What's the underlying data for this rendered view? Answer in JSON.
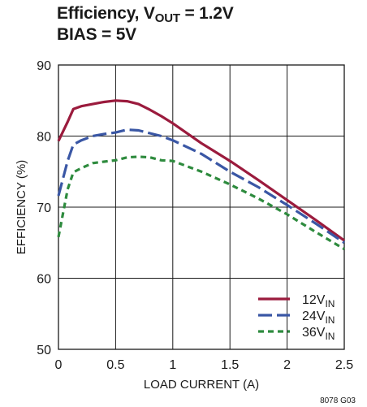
{
  "title": {
    "line1_prefix": "Efficiency, V",
    "line1_sub": "OUT",
    "line1_suffix": " = 1.2V",
    "line2": "BIAS = 5V"
  },
  "figure_code": "8078 G03",
  "chart_data": {
    "type": "line",
    "xlabel": "LOAD CURRENT (A)",
    "ylabel": "EFFICIENCY (%)",
    "xlim": [
      0,
      2.5
    ],
    "ylim": [
      50,
      90
    ],
    "x_ticks": [
      0,
      0.5,
      1,
      1.5,
      2,
      2.5
    ],
    "x_tick_labels": [
      "0",
      "0.5",
      "1",
      "1.5",
      "2",
      "2.5"
    ],
    "y_ticks": [
      50,
      60,
      70,
      80,
      90
    ],
    "y_tick_labels": [
      "50",
      "60",
      "70",
      "80",
      "90"
    ],
    "grid": true,
    "legend_position": "bottom-right",
    "series": [
      {
        "name": "12V",
        "name_sub": "IN",
        "color": "#9b1b3d",
        "dash": "solid",
        "x": [
          0,
          0.08,
          0.13,
          0.2,
          0.3,
          0.4,
          0.5,
          0.6,
          0.7,
          0.8,
          0.9,
          1.0,
          1.25,
          1.5,
          1.75,
          2.0,
          2.25,
          2.5
        ],
        "y": [
          79.3,
          82.0,
          83.8,
          84.2,
          84.5,
          84.8,
          85.0,
          84.9,
          84.5,
          83.7,
          82.8,
          81.8,
          79.0,
          76.5,
          73.8,
          71.0,
          68.2,
          65.3
        ]
      },
      {
        "name": "24V",
        "name_sub": "IN",
        "color": "#3a57a5",
        "dash": "long",
        "x": [
          0,
          0.08,
          0.13,
          0.2,
          0.3,
          0.4,
          0.5,
          0.6,
          0.7,
          0.8,
          0.9,
          1.0,
          1.25,
          1.5,
          1.75,
          2.0,
          2.25,
          2.5
        ],
        "y": [
          71.6,
          76.5,
          78.8,
          79.4,
          80.0,
          80.3,
          80.5,
          80.9,
          80.8,
          80.4,
          80.0,
          79.4,
          77.5,
          75.0,
          72.8,
          70.3,
          67.7,
          65.0
        ]
      },
      {
        "name": "36V",
        "name_sub": "IN",
        "color": "#2e8b3e",
        "dash": "short",
        "x": [
          0,
          0.08,
          0.13,
          0.2,
          0.3,
          0.4,
          0.5,
          0.6,
          0.7,
          0.8,
          0.9,
          1.0,
          1.25,
          1.5,
          1.75,
          2.0,
          2.25,
          2.5
        ],
        "y": [
          65.8,
          72.5,
          74.9,
          75.5,
          76.2,
          76.4,
          76.6,
          77.0,
          77.1,
          77.0,
          76.6,
          76.5,
          75.0,
          73.2,
          71.2,
          69.0,
          66.5,
          64.1
        ]
      }
    ]
  }
}
